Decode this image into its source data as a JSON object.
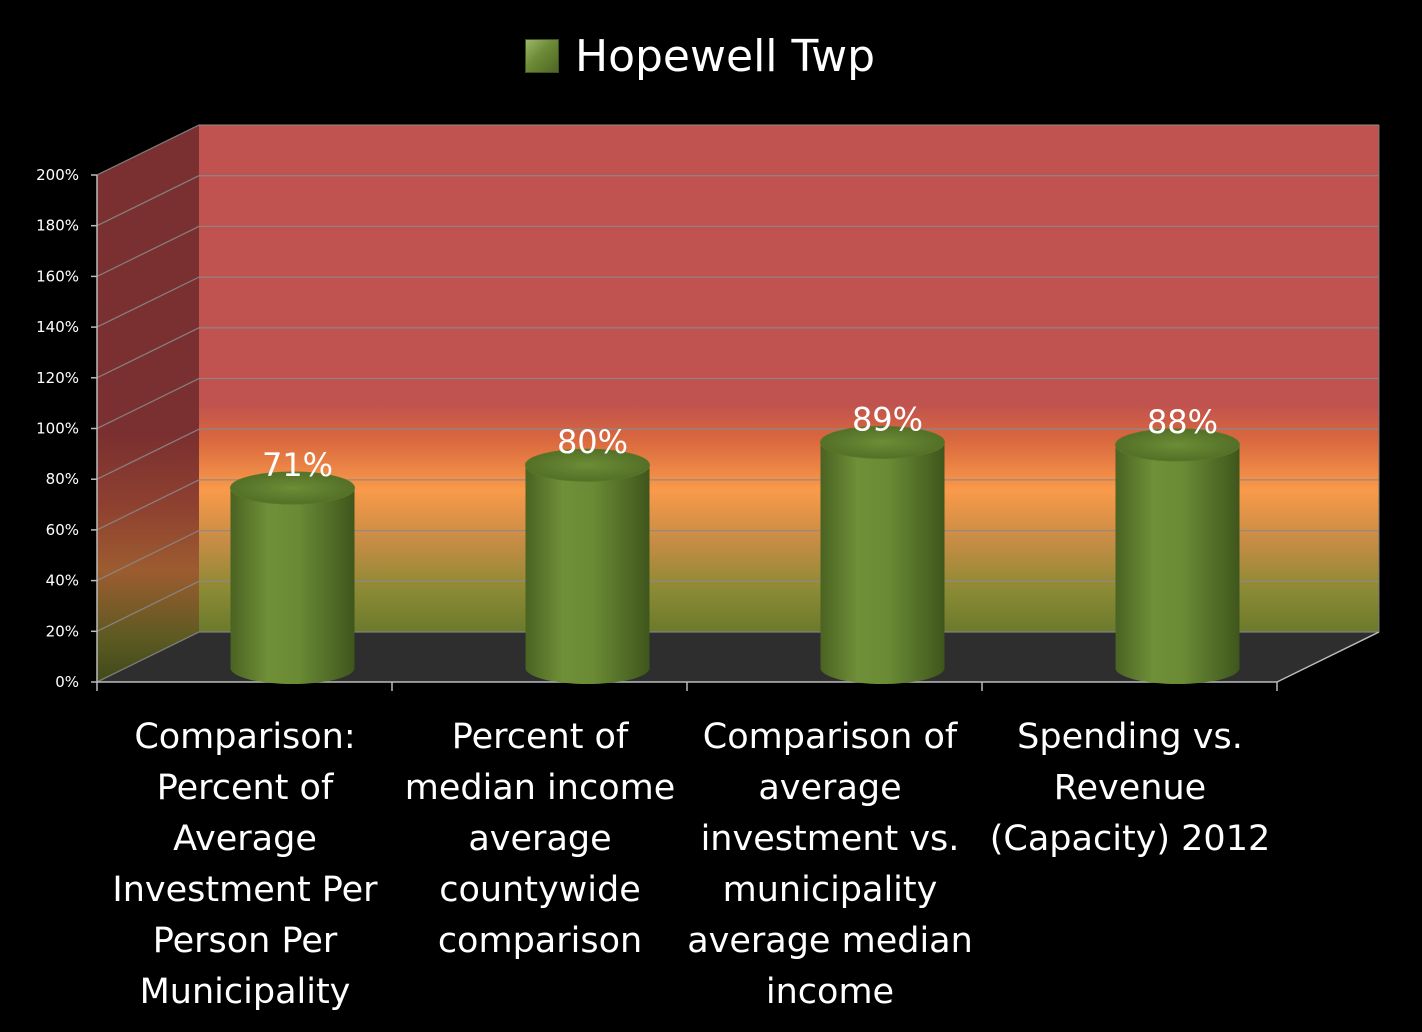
{
  "chart_data": {
    "type": "bar",
    "title": "",
    "xlabel": "",
    "ylabel": "",
    "categories": [
      "Comparison: Percent of Average Investment Per Person Per Municipality",
      "Percent of median income average countywide comparison",
      "Comparison of average investment vs. municipality average median income",
      "Spending vs. Revenue (Capacity) 2012"
    ],
    "series": [
      {
        "name": "Hopewell Twp",
        "values": [
          71,
          80,
          89,
          88
        ],
        "color": "#6b8a35"
      }
    ],
    "data_labels": [
      "71%",
      "80%",
      "89%",
      "88%"
    ],
    "y_ticks": [
      "0%",
      "20%",
      "40%",
      "60%",
      "80%",
      "100%",
      "120%",
      "140%",
      "160%",
      "180%",
      "200%"
    ],
    "ylim": [
      0,
      200
    ],
    "legend_position": "top-center",
    "grid": true,
    "background_bands": [
      "#c0524f",
      "#f99a4a",
      "#6b8a35"
    ]
  }
}
